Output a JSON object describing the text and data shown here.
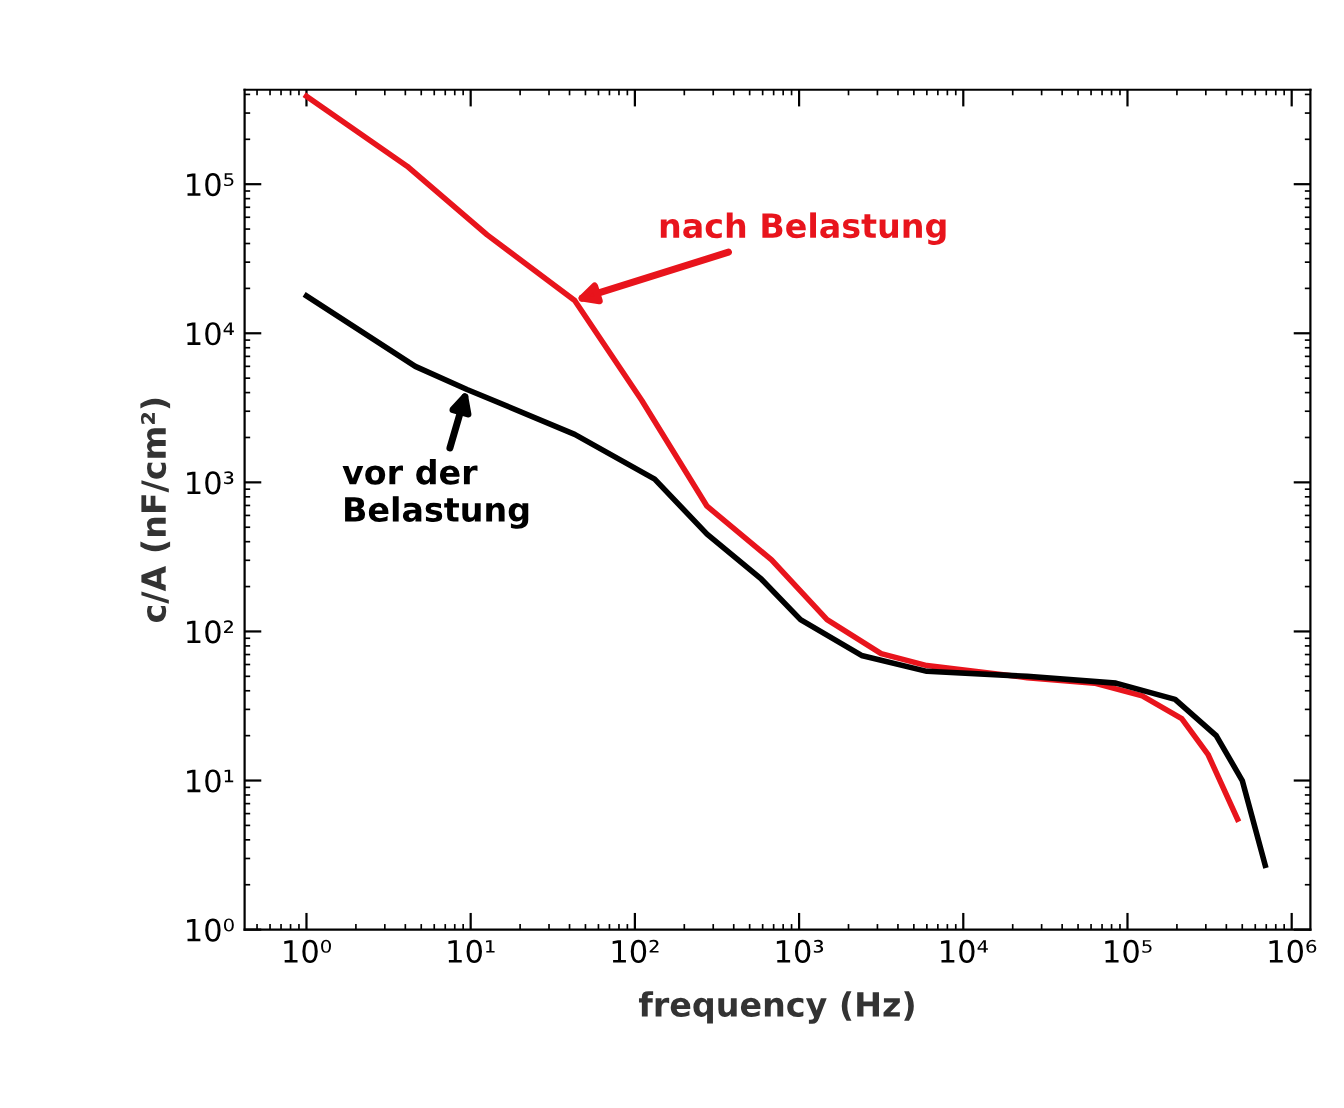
{
  "chart_data": {
    "type": "line",
    "xlabel": "frequency (Hz)",
    "ylabel": "c/A (nF/cm²)",
    "log": "xy",
    "grid": false,
    "legend": false,
    "marker": "none",
    "line_style": "solid",
    "xlim": [
      0.42,
      1300000
    ],
    "ylim": [
      1,
      430000
    ],
    "xticks": [
      {
        "value": 1,
        "label": "10⁰"
      },
      {
        "value": 10,
        "label": "10¹"
      },
      {
        "value": 100,
        "label": "10²"
      },
      {
        "value": 1000,
        "label": "10³"
      },
      {
        "value": 10000,
        "label": "10⁴"
      },
      {
        "value": 100000,
        "label": "10⁵"
      },
      {
        "value": 1000000,
        "label": "10⁶"
      }
    ],
    "yticks": [
      {
        "value": 1,
        "label": "10⁰"
      },
      {
        "value": 10,
        "label": "10¹"
      },
      {
        "value": 100,
        "label": "10²"
      },
      {
        "value": 1000,
        "label": "10³"
      },
      {
        "value": 10000,
        "label": "10⁴"
      },
      {
        "value": 100000,
        "label": "10⁵"
      }
    ],
    "series": [
      {
        "color": "#e8141c",
        "x": [
          1,
          4.1,
          12.6,
          43,
          110,
          275,
          680,
          1480,
          3160,
          6000,
          24500,
          63000,
          123000,
          214000,
          309000,
          468000
        ],
        "values": [
          389000,
          132000,
          45700,
          16600,
          3550,
          692,
          302,
          120,
          71,
          59,
          49,
          45,
          37,
          26,
          15,
          5.5
        ]
      },
      {
        "color": "#000000",
        "x": [
          1,
          4.6,
          9.5,
          43,
          132,
          275,
          590,
          1020,
          2400,
          6000,
          24500,
          85000,
          195000,
          347000,
          500000,
          690000
        ],
        "values": [
          17800,
          6000,
          4200,
          2100,
          1050,
          450,
          224,
          120,
          69,
          54,
          50,
          45,
          35,
          20,
          10,
          2.7
        ]
      }
    ],
    "annotations": [
      {
        "text": "nach Belastung",
        "x": 43,
        "y": 16600
      },
      {
        "text": "vor der\nBelastung",
        "x": 9.5,
        "y": 4200
      }
    ]
  }
}
